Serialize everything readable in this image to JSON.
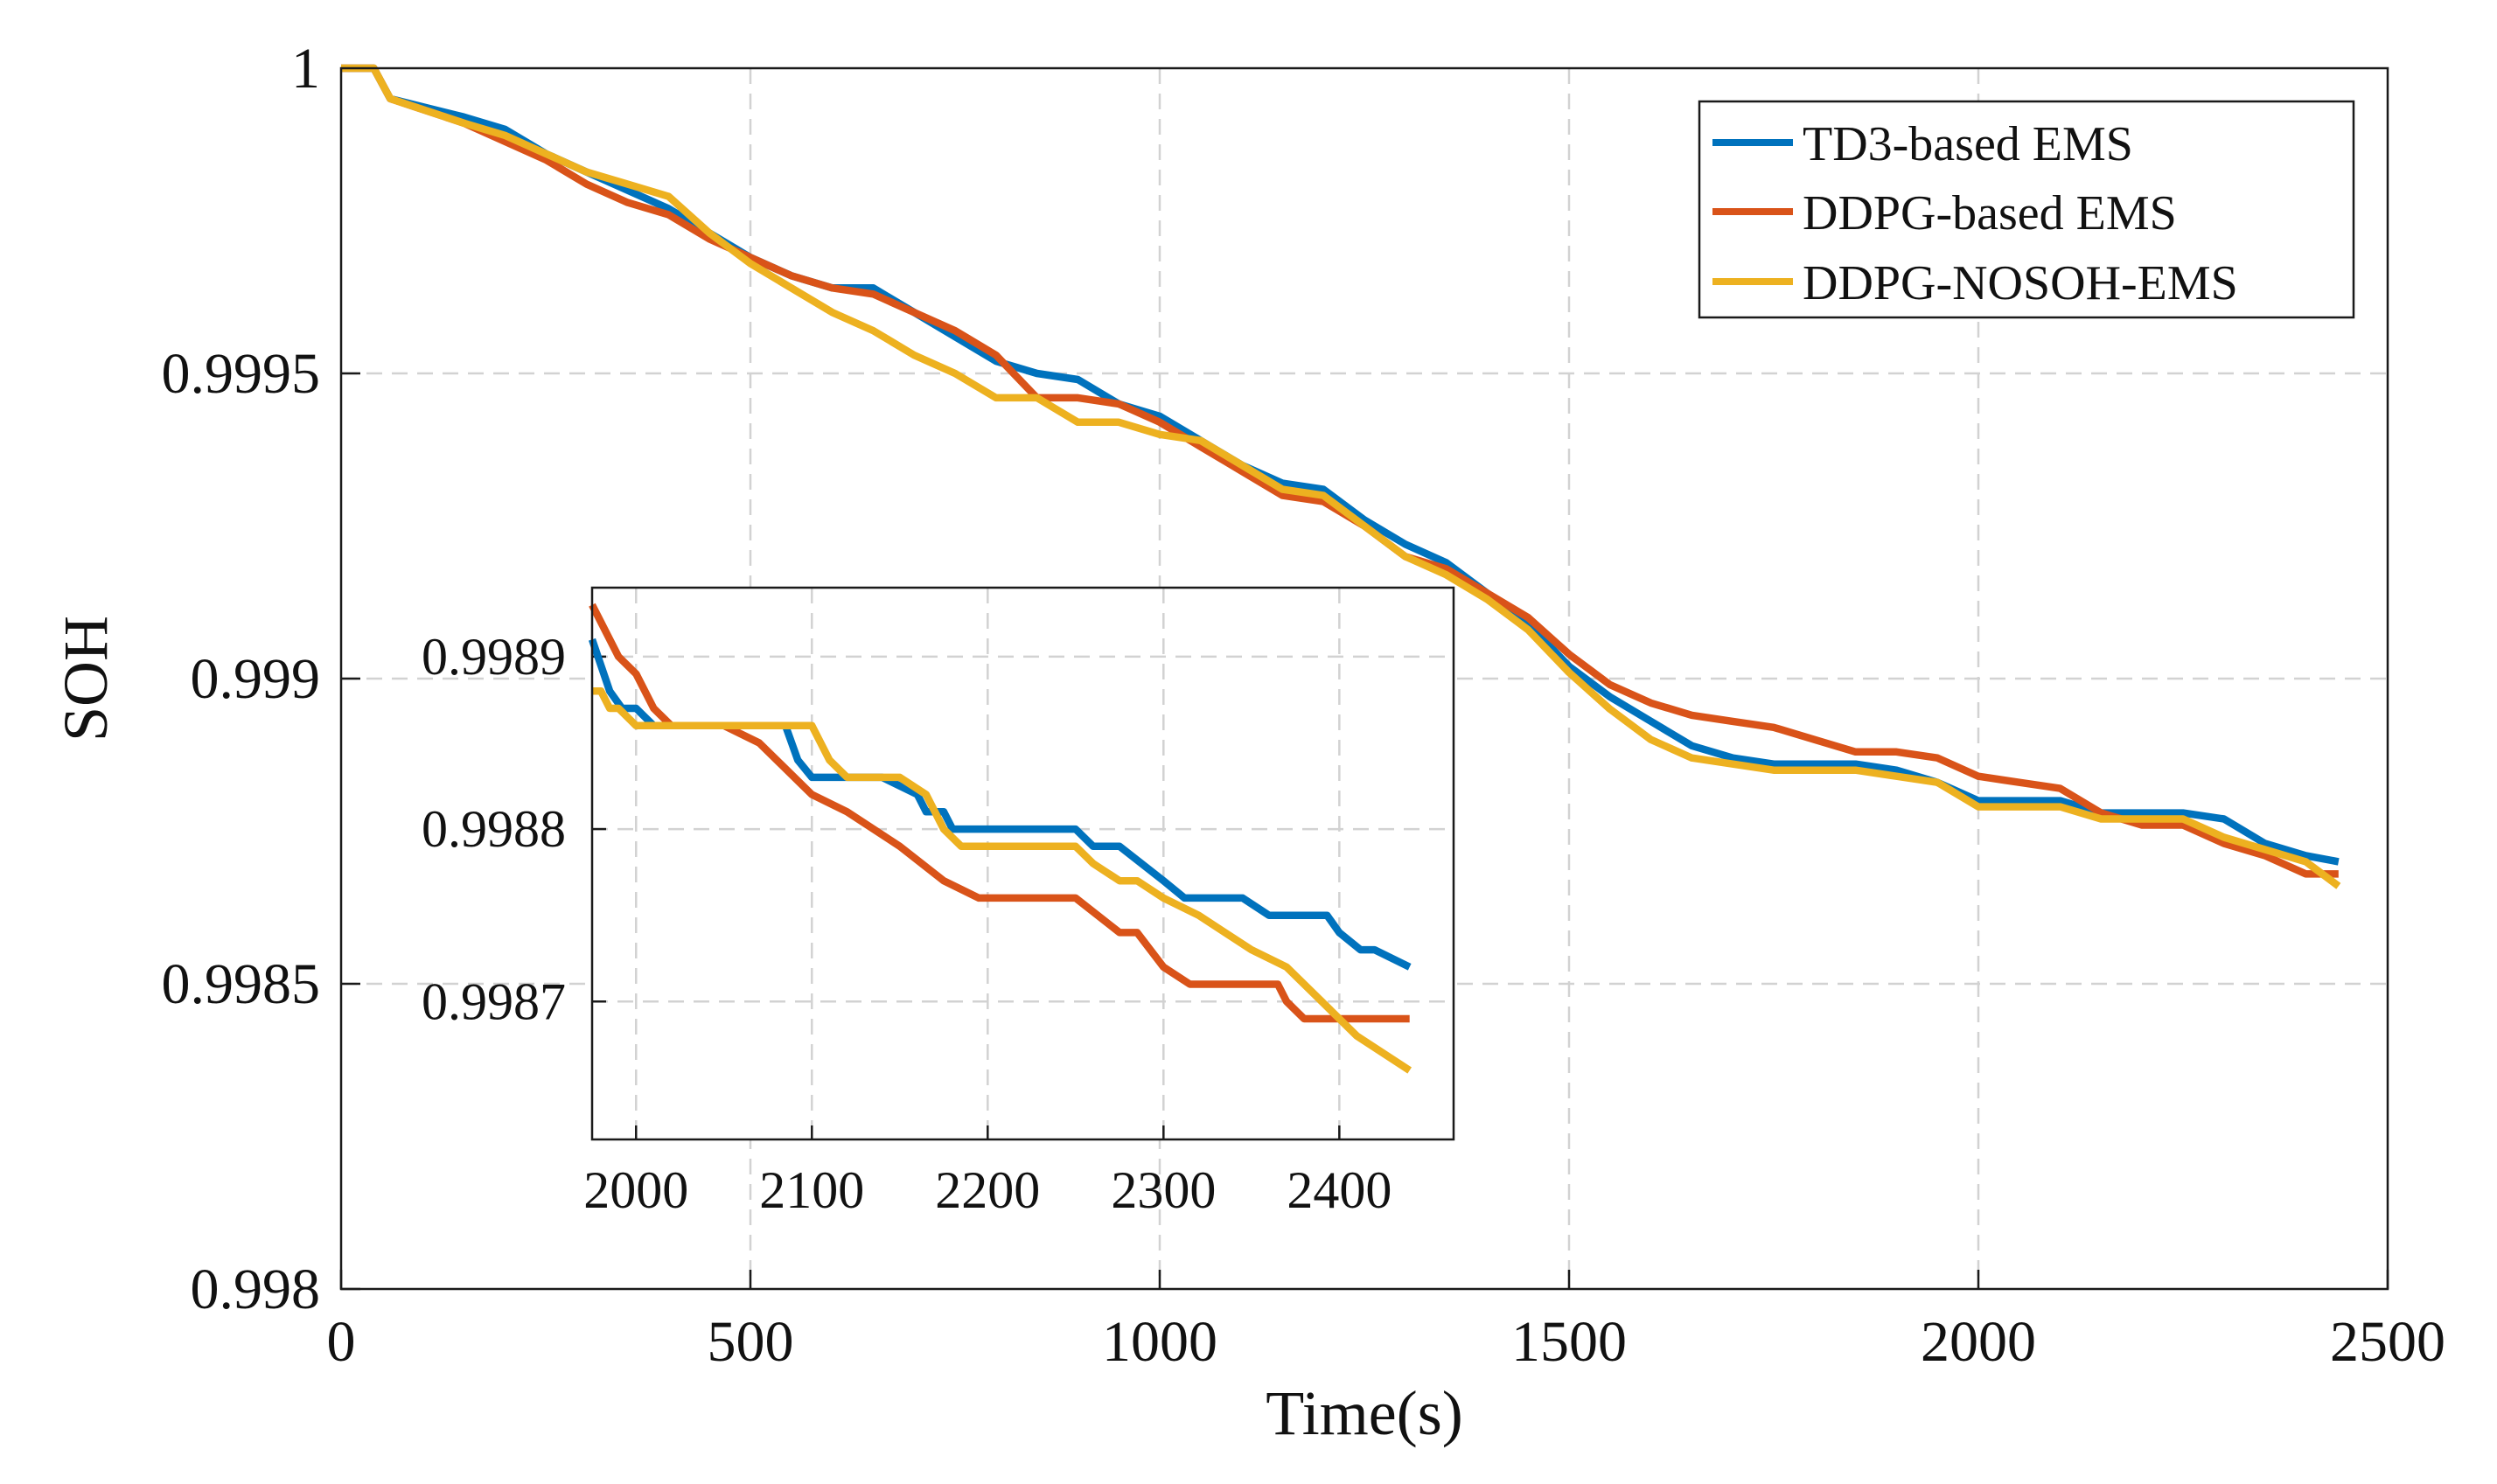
{
  "chart_data": [
    {
      "type": "line",
      "id": "main",
      "title": "",
      "xlabel": "Time(s)",
      "ylabel": "SOH",
      "xlim": [
        0,
        2500
      ],
      "ylim": [
        0.998,
        1.0
      ],
      "grid": true,
      "legend_position": "top-right",
      "x_ticks": [
        0,
        500,
        1000,
        1500,
        2000,
        2500
      ],
      "x_tick_labels": [
        "0",
        "500",
        "1000",
        "1500",
        "2000",
        "2500"
      ],
      "y_ticks": [
        0.998,
        0.9985,
        0.999,
        0.9995,
        1.0
      ],
      "y_tick_labels": [
        "0.998",
        "0.9985",
        "0.999",
        "0.9995",
        "1"
      ],
      "series": [
        {
          "name": "TD3-based EMS",
          "color": "#0072BD",
          "x": [
            0,
            40,
            60,
            150,
            200,
            250,
            300,
            350,
            400,
            450,
            500,
            550,
            600,
            650,
            700,
            750,
            800,
            850,
            900,
            950,
            1000,
            1050,
            1100,
            1150,
            1200,
            1250,
            1300,
            1350,
            1400,
            1450,
            1500,
            1550,
            1600,
            1650,
            1700,
            1750,
            1800,
            1850,
            1900,
            1950,
            2000,
            2050,
            2100,
            2150,
            2200,
            2250,
            2300,
            2350,
            2400,
            2440
          ],
          "values": [
            1.0,
            1.0,
            0.99995,
            0.99992,
            0.9999,
            0.99986,
            0.99983,
            0.9998,
            0.99977,
            0.99973,
            0.99969,
            0.99966,
            0.99964,
            0.99964,
            0.9996,
            0.99956,
            0.99952,
            0.9995,
            0.99949,
            0.99945,
            0.99943,
            0.99939,
            0.99935,
            0.99932,
            0.99931,
            0.99926,
            0.99922,
            0.99919,
            0.99914,
            0.99909,
            0.99902,
            0.99897,
            0.99893,
            0.99889,
            0.99887,
            0.99886,
            0.99886,
            0.99886,
            0.99885,
            0.99883,
            0.9988,
            0.9988,
            0.9988,
            0.99878,
            0.99878,
            0.99878,
            0.99877,
            0.99873,
            0.99871,
            0.9987
          ]
        },
        {
          "name": "DDPG-based EMS",
          "color": "#D95319",
          "x": [
            0,
            40,
            60,
            150,
            200,
            250,
            300,
            350,
            400,
            450,
            500,
            550,
            600,
            650,
            700,
            750,
            800,
            850,
            900,
            950,
            1000,
            1050,
            1100,
            1150,
            1200,
            1250,
            1300,
            1350,
            1400,
            1450,
            1500,
            1550,
            1600,
            1650,
            1700,
            1750,
            1800,
            1850,
            1900,
            1950,
            2000,
            2050,
            2100,
            2150,
            2200,
            2250,
            2300,
            2350,
            2400,
            2440
          ],
          "values": [
            1.0,
            1.0,
            0.99995,
            0.99991,
            0.99988,
            0.99985,
            0.99981,
            0.99978,
            0.99976,
            0.99972,
            0.99969,
            0.99966,
            0.99964,
            0.99963,
            0.9996,
            0.99957,
            0.99953,
            0.99946,
            0.99946,
            0.99945,
            0.99942,
            0.99938,
            0.99934,
            0.9993,
            0.99929,
            0.99925,
            0.9992,
            0.99918,
            0.99914,
            0.9991,
            0.99904,
            0.99899,
            0.99896,
            0.99894,
            0.99893,
            0.99892,
            0.9989,
            0.99888,
            0.99888,
            0.99887,
            0.99884,
            0.99883,
            0.99882,
            0.99878,
            0.99876,
            0.99876,
            0.99873,
            0.99871,
            0.99868,
            0.99868
          ]
        },
        {
          "name": "DDPG-NOSOH-EMS",
          "color": "#EDB120",
          "x": [
            0,
            40,
            60,
            150,
            200,
            250,
            300,
            350,
            400,
            450,
            500,
            550,
            600,
            650,
            700,
            750,
            800,
            850,
            900,
            950,
            1000,
            1050,
            1100,
            1150,
            1200,
            1250,
            1300,
            1350,
            1400,
            1450,
            1500,
            1550,
            1600,
            1650,
            1700,
            1750,
            1800,
            1850,
            1900,
            1950,
            2000,
            2050,
            2100,
            2150,
            2200,
            2250,
            2300,
            2350,
            2400,
            2440
          ],
          "values": [
            1.0,
            1.0,
            0.99995,
            0.99991,
            0.99989,
            0.99986,
            0.99983,
            0.99981,
            0.99979,
            0.99973,
            0.99968,
            0.99964,
            0.9996,
            0.99957,
            0.99953,
            0.9995,
            0.99946,
            0.99946,
            0.99942,
            0.99942,
            0.9994,
            0.99939,
            0.99935,
            0.99931,
            0.9993,
            0.99925,
            0.9992,
            0.99917,
            0.99913,
            0.99908,
            0.99901,
            0.99895,
            0.9989,
            0.99887,
            0.99886,
            0.99885,
            0.99885,
            0.99885,
            0.99884,
            0.99883,
            0.99879,
            0.99879,
            0.99879,
            0.99877,
            0.99877,
            0.99877,
            0.99874,
            0.99872,
            0.9987,
            0.99866
          ]
        }
      ]
    },
    {
      "type": "line",
      "id": "inset",
      "title": "",
      "xlabel": "",
      "ylabel": "",
      "xlim": [
        1975,
        2465
      ],
      "ylim": [
        0.99862,
        0.99894
      ],
      "grid": true,
      "legend_position": "none",
      "x_ticks": [
        2000,
        2100,
        2200,
        2300,
        2400
      ],
      "x_tick_labels": [
        "2000",
        "2100",
        "2200",
        "2300",
        "2400"
      ],
      "y_ticks": [
        0.9987,
        0.9988,
        0.9989
      ],
      "y_tick_labels": [
        "0.9987",
        "0.9988",
        "0.9989"
      ],
      "series": [
        {
          "name": "TD3-based EMS",
          "color": "#0072BD",
          "x": [
            1975,
            1985,
            1992,
            2000,
            2010,
            2085,
            2092,
            2100,
            2110,
            2115,
            2140,
            2160,
            2165,
            2175,
            2180,
            2200,
            2250,
            2260,
            2275,
            2300,
            2312,
            2328,
            2345,
            2360,
            2393,
            2400,
            2412,
            2420,
            2440
          ],
          "values": [
            0.99891,
            0.99888,
            0.99887,
            0.99887,
            0.99886,
            0.99886,
            0.99884,
            0.99883,
            0.99883,
            0.99883,
            0.99883,
            0.99882,
            0.99881,
            0.99881,
            0.9988,
            0.9988,
            0.9988,
            0.99879,
            0.99879,
            0.99877,
            0.99876,
            0.99876,
            0.99876,
            0.99875,
            0.99875,
            0.99874,
            0.99873,
            0.99873,
            0.99872
          ]
        },
        {
          "name": "DDPG-based EMS",
          "color": "#D95319",
          "x": [
            1975,
            1990,
            2000,
            2010,
            2020,
            2050,
            2070,
            2100,
            2120,
            2150,
            2175,
            2195,
            2250,
            2275,
            2285,
            2300,
            2315,
            2365,
            2370,
            2380,
            2390,
            2420,
            2440
          ],
          "values": [
            0.99893,
            0.9989,
            0.99889,
            0.99887,
            0.99886,
            0.99886,
            0.99885,
            0.99882,
            0.99881,
            0.99879,
            0.99877,
            0.99876,
            0.99876,
            0.99874,
            0.99874,
            0.99872,
            0.99871,
            0.99871,
            0.9987,
            0.99869,
            0.99869,
            0.99869,
            0.99869
          ]
        },
        {
          "name": "DDPG-NOSOH-EMS",
          "color": "#EDB120",
          "x": [
            1975,
            1980,
            1985,
            1990,
            2000,
            2010,
            2020,
            2100,
            2110,
            2120,
            2150,
            2165,
            2175,
            2185,
            2250,
            2260,
            2275,
            2285,
            2300,
            2320,
            2350,
            2370,
            2390,
            2410,
            2440
          ],
          "values": [
            0.99888,
            0.99888,
            0.99887,
            0.99887,
            0.99886,
            0.99886,
            0.99886,
            0.99886,
            0.99884,
            0.99883,
            0.99883,
            0.99882,
            0.9988,
            0.99879,
            0.99879,
            0.99878,
            0.99877,
            0.99877,
            0.99876,
            0.99875,
            0.99873,
            0.99872,
            0.9987,
            0.99868,
            0.99866
          ]
        }
      ]
    }
  ]
}
